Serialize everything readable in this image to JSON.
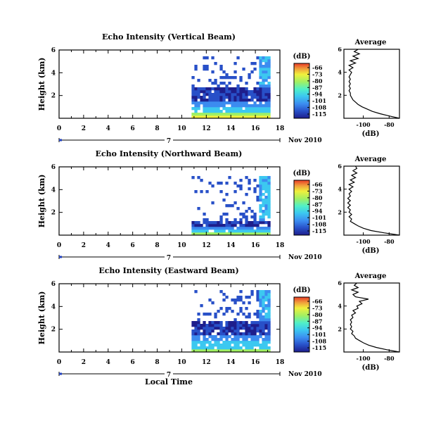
{
  "chart_data": [
    {
      "type": "heatmap",
      "title": "Echo Intensity (Vertical Beam)",
      "ylabel": "Height (km)",
      "xlim": [
        0,
        18
      ],
      "ylim": [
        0,
        6
      ],
      "x_ticks": [
        "0",
        "2",
        "4",
        "6",
        "8",
        "10",
        "12",
        "14",
        "16",
        "18"
      ],
      "y_ticks": [
        "2",
        "4",
        "6"
      ],
      "date_label": "Nov 2010",
      "timeline_marker": "7",
      "colorbar": {
        "unit": "(dB)",
        "ticks": [
          "-66",
          "-73",
          "-80",
          "-87",
          "-94",
          "-101",
          "-108",
          "-115"
        ]
      },
      "region": {
        "x_start": 10.8,
        "x_end": 17.1,
        "surface_top": 0.55,
        "main_top": 2.9,
        "sparse_top": 5.5
      },
      "side_profile": {
        "title": "Average",
        "xlabel": "(dB)",
        "x_ticks": [
          "-100",
          "-80"
        ],
        "y_ticks": [
          "2",
          "4",
          "6"
        ],
        "xlim": [
          -115,
          -72
        ],
        "ylim": [
          0,
          6
        ],
        "points": [
          [
            0.0,
            -72
          ],
          [
            0.2,
            -80
          ],
          [
            0.4,
            -87
          ],
          [
            0.6,
            -93
          ],
          [
            0.8,
            -97
          ],
          [
            1.0,
            -101
          ],
          [
            1.2,
            -104
          ],
          [
            1.4,
            -106
          ],
          [
            1.6,
            -108
          ],
          [
            1.8,
            -109
          ],
          [
            2.0,
            -110
          ],
          [
            2.2,
            -110
          ],
          [
            2.4,
            -111
          ],
          [
            2.6,
            -110
          ],
          [
            2.8,
            -111
          ],
          [
            3.0,
            -110
          ],
          [
            3.2,
            -111
          ],
          [
            3.4,
            -110
          ],
          [
            3.6,
            -111
          ],
          [
            3.8,
            -110
          ],
          [
            4.0,
            -109
          ],
          [
            4.2,
            -111
          ],
          [
            4.4,
            -108
          ],
          [
            4.6,
            -111
          ],
          [
            4.8,
            -106
          ],
          [
            5.0,
            -110
          ],
          [
            5.2,
            -104
          ],
          [
            5.4,
            -108
          ],
          [
            5.6,
            -103
          ],
          [
            5.8,
            -107
          ],
          [
            6.0,
            -104
          ]
        ]
      }
    },
    {
      "type": "heatmap",
      "title": "Echo Intensity (Northward Beam)",
      "ylabel": "Height (km)",
      "xlim": [
        0,
        18
      ],
      "ylim": [
        0,
        6
      ],
      "x_ticks": [
        "0",
        "2",
        "4",
        "6",
        "8",
        "10",
        "12",
        "14",
        "16",
        "18"
      ],
      "y_ticks": [
        "2",
        "4",
        "6"
      ],
      "date_label": "Nov 2010",
      "timeline_marker": "7",
      "colorbar": {
        "unit": "(dB)",
        "ticks": [
          "-66",
          "-73",
          "-80",
          "-87",
          "-94",
          "-101",
          "-108",
          "-115"
        ]
      },
      "region": {
        "x_start": 10.8,
        "x_end": 17.1,
        "surface_top": 0.3,
        "main_top": 1.3,
        "sparse_top": 5.4
      },
      "side_profile": {
        "title": "Average",
        "xlabel": "(dB)",
        "x_ticks": [
          "-100",
          "-80"
        ],
        "y_ticks": [
          "2",
          "4",
          "6"
        ],
        "xlim": [
          -115,
          -72
        ],
        "ylim": [
          0,
          6
        ],
        "points": [
          [
            0.0,
            -72
          ],
          [
            0.2,
            -84
          ],
          [
            0.4,
            -94
          ],
          [
            0.6,
            -100
          ],
          [
            0.8,
            -104
          ],
          [
            1.0,
            -107
          ],
          [
            1.2,
            -110
          ],
          [
            1.4,
            -109
          ],
          [
            1.6,
            -111
          ],
          [
            1.8,
            -109
          ],
          [
            2.0,
            -111
          ],
          [
            2.2,
            -110
          ],
          [
            2.4,
            -112
          ],
          [
            2.6,
            -110
          ],
          [
            2.8,
            -112
          ],
          [
            3.0,
            -110
          ],
          [
            3.2,
            -112
          ],
          [
            3.4,
            -110
          ],
          [
            3.6,
            -111
          ],
          [
            3.8,
            -109
          ],
          [
            4.0,
            -111
          ],
          [
            4.2,
            -108
          ],
          [
            4.4,
            -111
          ],
          [
            4.6,
            -107
          ],
          [
            4.8,
            -110
          ],
          [
            5.0,
            -106
          ],
          [
            5.2,
            -109
          ],
          [
            5.4,
            -105
          ],
          [
            5.6,
            -108
          ],
          [
            5.8,
            -105
          ],
          [
            6.0,
            -106
          ]
        ]
      }
    },
    {
      "type": "heatmap",
      "title": "Echo Intensity (Eastward Beam)",
      "ylabel": "Height (km)",
      "xlabel": "Local Time",
      "xlim": [
        0,
        18
      ],
      "ylim": [
        0,
        6
      ],
      "x_ticks": [
        "0",
        "2",
        "4",
        "6",
        "8",
        "10",
        "12",
        "14",
        "16",
        "18"
      ],
      "y_ticks": [
        "2",
        "4",
        "6"
      ],
      "date_label": "Nov 2010",
      "timeline_marker": "7",
      "colorbar": {
        "unit": "(dB)",
        "ticks": [
          "-66",
          "-73",
          "-80",
          "-87",
          "-94",
          "-101",
          "-108",
          "-115"
        ]
      },
      "region": {
        "x_start": 10.8,
        "x_end": 17.1,
        "surface_top": 0.4,
        "main_top": 2.9,
        "sparse_top": 5.6
      },
      "side_profile": {
        "title": "Average",
        "xlabel": "(dB)",
        "x_ticks": [
          "-100",
          "-80"
        ],
        "y_ticks": [
          "2",
          "4",
          "6"
        ],
        "xlim": [
          -115,
          -72
        ],
        "ylim": [
          0,
          6
        ],
        "points": [
          [
            0.0,
            -72
          ],
          [
            0.2,
            -82
          ],
          [
            0.4,
            -90
          ],
          [
            0.6,
            -96
          ],
          [
            0.8,
            -100
          ],
          [
            1.0,
            -103
          ],
          [
            1.2,
            -106
          ],
          [
            1.4,
            -107
          ],
          [
            1.6,
            -109
          ],
          [
            1.8,
            -108
          ],
          [
            2.0,
            -110
          ],
          [
            2.2,
            -109
          ],
          [
            2.4,
            -110
          ],
          [
            2.6,
            -109
          ],
          [
            2.8,
            -110
          ],
          [
            3.0,
            -108
          ],
          [
            3.2,
            -109
          ],
          [
            3.4,
            -106
          ],
          [
            3.6,
            -108
          ],
          [
            3.8,
            -104
          ],
          [
            4.0,
            -105
          ],
          [
            4.2,
            -101
          ],
          [
            4.4,
            -103
          ],
          [
            4.6,
            -96
          ],
          [
            4.8,
            -106
          ],
          [
            5.0,
            -108
          ],
          [
            5.2,
            -104
          ],
          [
            5.4,
            -109
          ],
          [
            5.6,
            -104
          ],
          [
            5.8,
            -107
          ],
          [
            6.0,
            -105
          ]
        ]
      }
    }
  ],
  "colors": {
    "colormap": [
      "#1e1e8c",
      "#2850c8",
      "#3c8cf0",
      "#3cc8f0",
      "#50f0c8",
      "#a0f064",
      "#f0f03c",
      "#f0a03c",
      "#e83c28"
    ],
    "marker": "#2040c0"
  }
}
